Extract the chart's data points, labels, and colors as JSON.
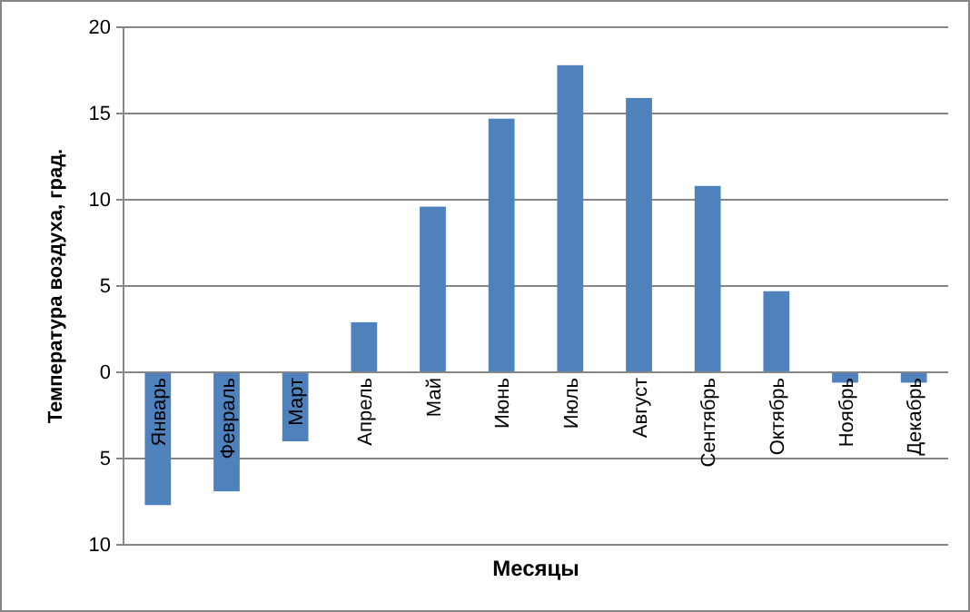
{
  "chart_data": {
    "type": "bar",
    "xlabel": "Месяцы",
    "ylabel": "Температура воздуха, град.",
    "categories": [
      "Январь",
      "Февраль",
      "Март",
      "Апрель",
      "Май",
      "Июнь",
      "Июль",
      "Август",
      "Сентябрь",
      "Октябрь",
      "Ноябрь",
      "Декабрь"
    ],
    "values": [
      -7.7,
      -6.9,
      -4.0,
      2.9,
      9.6,
      14.7,
      17.8,
      15.9,
      10.8,
      4.7,
      -0.6,
      -0.6
    ],
    "color": "#4f81bd",
    "ylim": [
      -10,
      20
    ],
    "yticks": [
      {
        "value": -10,
        "label": "10"
      },
      {
        "value": -5,
        "label": "5"
      },
      0,
      5,
      10,
      15,
      20
    ],
    "grid": "y"
  }
}
